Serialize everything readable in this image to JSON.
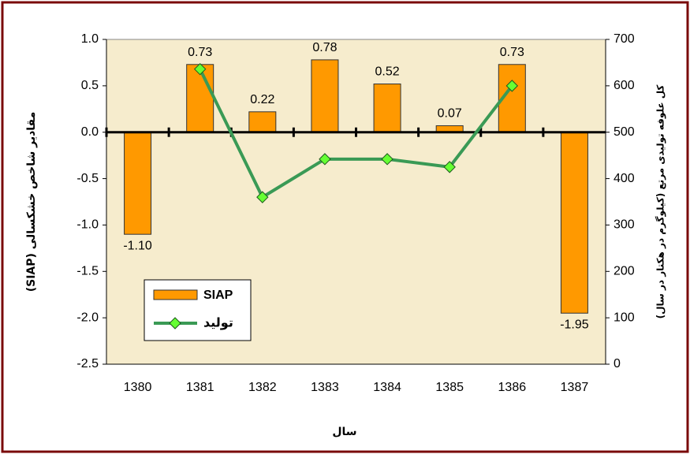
{
  "chart_data": {
    "type": "bar-line",
    "categories": [
      "1380",
      "1381",
      "1382",
      "1383",
      "1384",
      "1385",
      "1386",
      "1387"
    ],
    "series": [
      {
        "name": "SIAP",
        "type": "bar",
        "color": "#ff9900",
        "values": [
          -1.1,
          0.73,
          0.22,
          0.78,
          0.52,
          0.07,
          0.73,
          -1.95
        ],
        "value_labels": [
          "-1.10",
          "0.73",
          "0.22",
          "0.78",
          "0.52",
          "0.07",
          "0.73",
          "-1.95"
        ]
      },
      {
        "name": "تولید",
        "type": "line",
        "axis": "y2",
        "color": "#3a9a55",
        "marker_color": "#66ff33",
        "values": [
          null,
          636,
          360,
          442,
          442,
          425,
          600,
          null
        ]
      }
    ],
    "ylim": [
      -2.5,
      1.0
    ],
    "yticks": [
      {
        "value": -2.5,
        "label": "-2.5"
      },
      {
        "value": -2,
        "label": "-2.0"
      },
      -1.5,
      {
        "value": -1,
        "label": "-1.0"
      },
      -0.5,
      {
        "value": 0,
        "label": "0.0"
      },
      0.5,
      {
        "value": 1,
        "label": "1.0"
      }
    ],
    "y2lim": [
      0,
      700
    ],
    "y2ticks": [
      0,
      100,
      200,
      300,
      400,
      500,
      600,
      700
    ],
    "xlabel": "سال",
    "ylabel": "مقادیر شاخص خشکسالی (SIAP)",
    "y2label": "کل علوفه تولیدی مرتع (کیلوگرم در هکتار در سال)",
    "grid": false
  }
}
